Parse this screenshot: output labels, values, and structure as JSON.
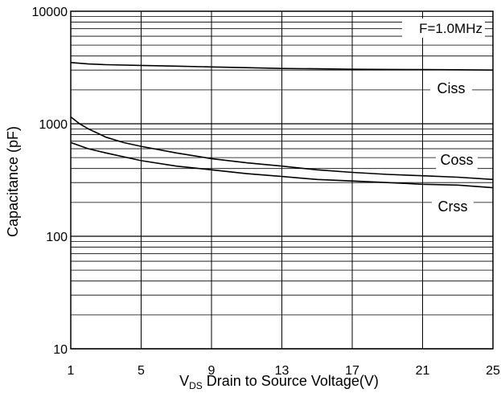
{
  "chart_data": {
    "type": "line",
    "title": "",
    "annotation": "F=1.0MHz",
    "xlabel_prefix": "V",
    "xlabel_sub": "DS",
    "xlabel_rest": " Drain to Source Voltage(V)",
    "ylabel": "Capacitance (pF)",
    "xlim": [
      1,
      25
    ],
    "ylim": [
      10,
      10000
    ],
    "yscale": "log",
    "grid": true,
    "xticks": [
      1,
      5,
      9,
      13,
      17,
      21,
      25
    ],
    "xtick_labels": [
      "1",
      "5",
      "9",
      "13",
      "17",
      "21",
      "25"
    ],
    "yticks": [
      10,
      100,
      1000,
      10000
    ],
    "ytick_labels": [
      "10",
      "100",
      "1000",
      "10000"
    ],
    "series": [
      {
        "name": "Ciss",
        "x": [
          1,
          2,
          3,
          5,
          7,
          9,
          11,
          13,
          15,
          17,
          19,
          21,
          23,
          25
        ],
        "y": [
          3500,
          3400,
          3350,
          3300,
          3250,
          3200,
          3150,
          3100,
          3080,
          3050,
          3040,
          3030,
          3020,
          3000
        ]
      },
      {
        "name": "Coss",
        "x": [
          1,
          1.5,
          2,
          3,
          4,
          5,
          7,
          9,
          11,
          13,
          15,
          17,
          19,
          21,
          23,
          25
        ],
        "y": [
          1150,
          1000,
          900,
          760,
          680,
          630,
          550,
          490,
          450,
          420,
          390,
          370,
          355,
          345,
          335,
          320
        ]
      },
      {
        "name": "Crss",
        "x": [
          1,
          2,
          3,
          5,
          7,
          9,
          11,
          13,
          15,
          17,
          19,
          21,
          23,
          25
        ],
        "y": [
          680,
          600,
          550,
          470,
          420,
          390,
          360,
          340,
          320,
          310,
          300,
          290,
          285,
          270
        ]
      }
    ],
    "series_labels": [
      "Ciss",
      "Coss",
      "Crss"
    ]
  }
}
